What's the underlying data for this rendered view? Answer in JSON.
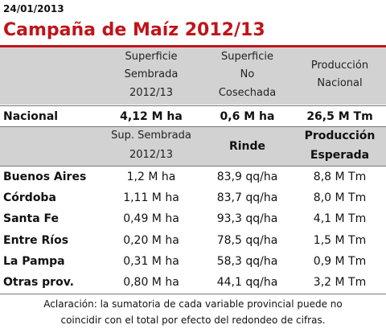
{
  "date": "24/01/2013",
  "title": "Campaña de Maíz 2012/13",
  "national_header": {
    "col1": [
      "Superficie",
      "Sembrada",
      "2012/13"
    ],
    "col2": [
      "Superficie",
      "No",
      "Cosechada"
    ],
    "col3": [
      "Producción",
      "Nacional"
    ]
  },
  "national_row": {
    "label": "Nacional",
    "col1": "4,12 M ha",
    "col2": "0,6 M ha",
    "col3": "26,5 M Tm"
  },
  "province_header": {
    "col1": [
      "Sup. Sembrada",
      "2012/13"
    ],
    "col2": "Rinde",
    "col3": [
      "Producción",
      "Esperada"
    ]
  },
  "provinces": [
    {
      "name": "Buenos Aires",
      "area": "1,2 M ha",
      "yield": "83,9 qq/ha",
      "production": "8,8 M Tm"
    },
    {
      "name": "Córdoba",
      "area": "1,11 M ha",
      "yield": "83,7 qq/ha",
      "production": "8,0 M Tm"
    },
    {
      "name": "Santa Fe",
      "area": "0,49 M ha",
      "yield": "93,3 qq/ha",
      "production": "4,1 M Tm"
    },
    {
      "name": "Entre Ríos",
      "area": "0,20 M ha",
      "yield": "78,5 qq/ha",
      "production": "1,5 M Tm"
    },
    {
      "name": "La Pampa",
      "area": "0,31 M ha",
      "yield": "58,3 qq/ha",
      "production": "0,9 M Tm"
    },
    {
      "name": "Otras prov.",
      "area": "0,80 M ha",
      "yield": "44,1 qq/ha",
      "production": "3,2 M Tm"
    }
  ],
  "note": [
    "Aclaración: la sumatoria de cada variable provincial puede no",
    "coincidir con el total por efecto del redondeo de cifras."
  ]
}
